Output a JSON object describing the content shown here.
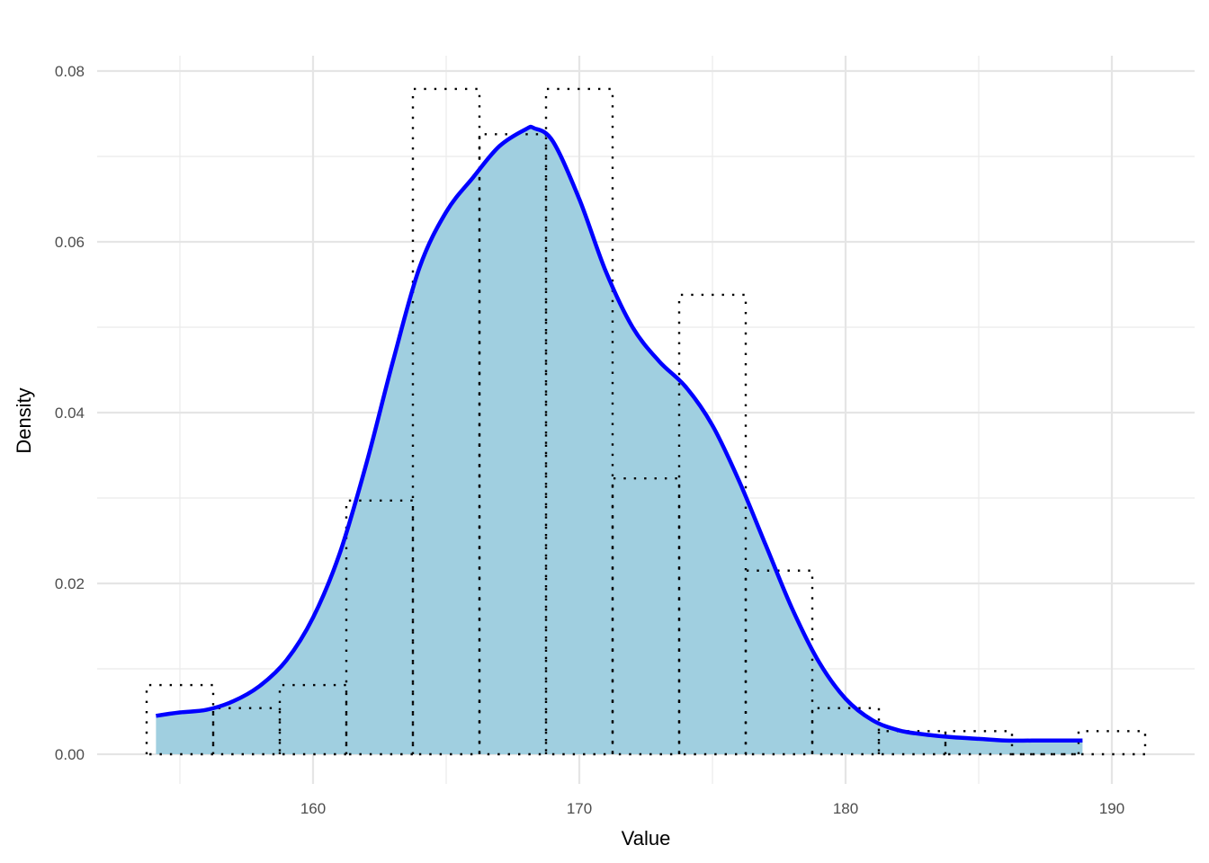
{
  "chart_data": {
    "type": "histogram+density",
    "title": "",
    "xlabel": "Value",
    "ylabel": "Density",
    "xlim": [
      152.0,
      192.5
    ],
    "ylim": [
      -0.0035,
      0.0815
    ],
    "xticks": [
      160,
      170,
      180,
      190
    ],
    "xticks_minor": [
      155,
      165,
      175,
      185
    ],
    "yticks": [
      0.0,
      0.02,
      0.04,
      0.06,
      0.08
    ],
    "ytick_labels": [
      "0.00",
      "0.02",
      "0.04",
      "0.06",
      "0.08"
    ],
    "yticks_minor": [
      0.01,
      0.03,
      0.05,
      0.07
    ],
    "grid": true,
    "legend": null,
    "histogram": {
      "binwidth": 2.5,
      "style": "dotted outline, no fill",
      "color": "#000000",
      "bins": [
        {
          "x0": 153.75,
          "x1": 156.25,
          "density": 0.0081
        },
        {
          "x0": 156.25,
          "x1": 158.75,
          "density": 0.0054
        },
        {
          "x0": 158.75,
          "x1": 161.25,
          "density": 0.0081
        },
        {
          "x0": 161.25,
          "x1": 163.75,
          "density": 0.0297
        },
        {
          "x0": 163.75,
          "x1": 166.25,
          "density": 0.0779
        },
        {
          "x0": 166.25,
          "x1": 168.75,
          "density": 0.0726
        },
        {
          "x0": 168.75,
          "x1": 171.25,
          "density": 0.0779
        },
        {
          "x0": 171.25,
          "x1": 173.75,
          "density": 0.0323
        },
        {
          "x0": 173.75,
          "x1": 176.25,
          "density": 0.0538
        },
        {
          "x0": 176.25,
          "x1": 178.75,
          "density": 0.0215
        },
        {
          "x0": 178.75,
          "x1": 181.25,
          "density": 0.0054
        },
        {
          "x0": 181.25,
          "x1": 183.75,
          "density": 0.0027
        },
        {
          "x0": 183.75,
          "x1": 186.25,
          "density": 0.0027
        },
        {
          "x0": 186.25,
          "x1": 188.75,
          "density": 0.0
        },
        {
          "x0": 188.75,
          "x1": 191.25,
          "density": 0.0027
        }
      ]
    },
    "density_curve": {
      "line_color": "#0000ff",
      "fill_color": "#a0cfe0",
      "x": [
        154.1,
        155.0,
        156.0,
        157.0,
        158.0,
        159.0,
        160.0,
        161.0,
        162.0,
        163.0,
        164.0,
        165.0,
        166.0,
        167.0,
        168.0,
        168.3,
        169.0,
        170.0,
        171.0,
        172.0,
        173.0,
        174.0,
        175.0,
        176.0,
        177.0,
        178.0,
        179.0,
        180.0,
        181.0,
        182.0,
        183.0,
        184.0,
        185.0,
        186.0,
        187.0,
        188.0,
        188.9
      ],
      "y": [
        0.0045,
        0.0049,
        0.0052,
        0.0062,
        0.008,
        0.011,
        0.016,
        0.0235,
        0.034,
        0.046,
        0.057,
        0.0635,
        0.0675,
        0.0712,
        0.0732,
        0.0733,
        0.0718,
        0.065,
        0.0565,
        0.05,
        0.046,
        0.043,
        0.0385,
        0.032,
        0.0245,
        0.017,
        0.0108,
        0.0065,
        0.004,
        0.0028,
        0.0023,
        0.002,
        0.0018,
        0.0016,
        0.0016,
        0.0016,
        0.0016
      ]
    }
  }
}
